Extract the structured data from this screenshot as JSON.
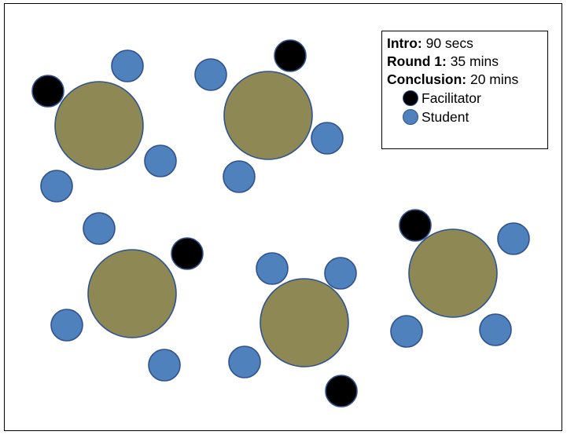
{
  "legend": {
    "intro_label": "Intro:",
    "intro_value": "90 secs",
    "round1_label": "Round 1:",
    "round1_value": "35 mins",
    "conclusion_label": "Conclusion:",
    "conclusion_value": "20 mins",
    "facilitator_label": "Facilitator",
    "student_label": "Student"
  },
  "colors": {
    "table": "#8e8855",
    "student": "#4f81bd",
    "facilitator": "#000000",
    "outline": "#2f528f"
  }
}
